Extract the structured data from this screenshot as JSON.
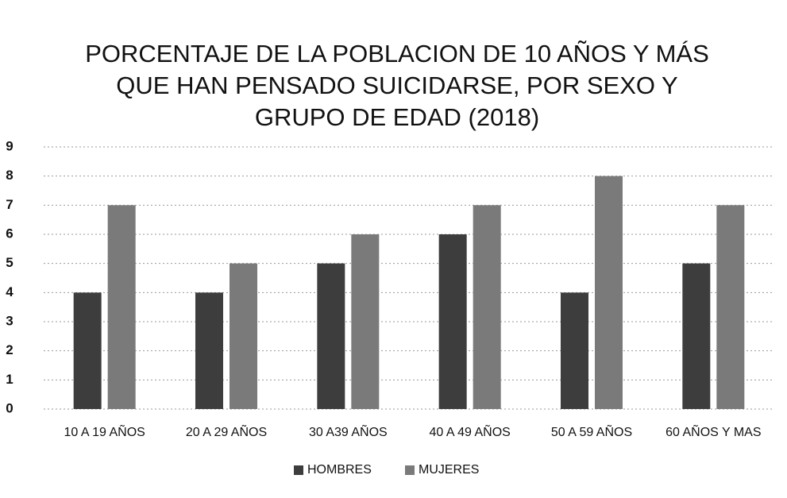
{
  "chart_data": {
    "type": "bar",
    "title": [
      "PORCENTAJE DE LA POBLACION DE 10 AÑOS Y MÁS",
      "QUE HAN PENSADO SUICIDARSE, POR SEXO Y",
      "GRUPO DE EDAD (2018)"
    ],
    "categories": [
      "10 A 19 AÑOS",
      "20 A 29 AÑOS",
      "30 A39 AÑOS",
      "40 A 49 AÑOS",
      "50 A 59 AÑOS",
      "60 AÑOS Y MAS"
    ],
    "series": [
      {
        "name": "HOMBRES",
        "color": "#3d3d3d",
        "values": [
          4,
          4,
          5,
          6,
          4,
          5
        ]
      },
      {
        "name": "MUJERES",
        "color": "#7a7a7a",
        "values": [
          7,
          5,
          6,
          7,
          8,
          7
        ]
      }
    ],
    "ylim": [
      0,
      9
    ],
    "yticks": [
      0,
      1,
      2,
      3,
      4,
      5,
      6,
      7,
      8,
      9
    ],
    "grid": true,
    "legend": "bottom"
  }
}
